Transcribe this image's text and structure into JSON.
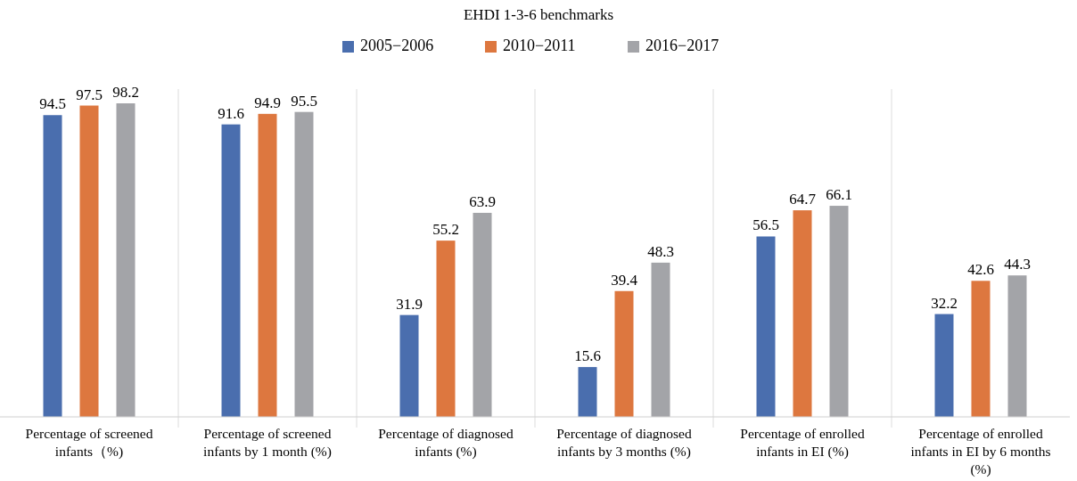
{
  "chart_data": {
    "type": "bar",
    "title": "EHDI 1-3-6 benchmarks",
    "categories": [
      "Percentage of screened infants（%)",
      "Percentage of screened infants by 1 month (%)",
      "Percentage of diagnosed infants (%)",
      "Percentage of diagnosed infants by 3 months (%)",
      "Percentage of enrolled infants in EI (%)",
      "Percentage of enrolled infants in EI by 6 months (%)"
    ],
    "series": [
      {
        "name": "2005−2006",
        "color": "#4a6eae",
        "values": [
          94.5,
          91.6,
          31.9,
          15.6,
          56.5,
          32.2
        ]
      },
      {
        "name": "2010−2011",
        "color": "#dd773f",
        "values": [
          97.5,
          94.9,
          55.2,
          39.4,
          64.7,
          42.6
        ]
      },
      {
        "name": "2016−2017",
        "color": "#a3a4a8",
        "values": [
          98.2,
          95.5,
          63.9,
          48.3,
          66.1,
          44.3
        ]
      }
    ],
    "data_labels": true,
    "legend": "top",
    "grid": false
  }
}
